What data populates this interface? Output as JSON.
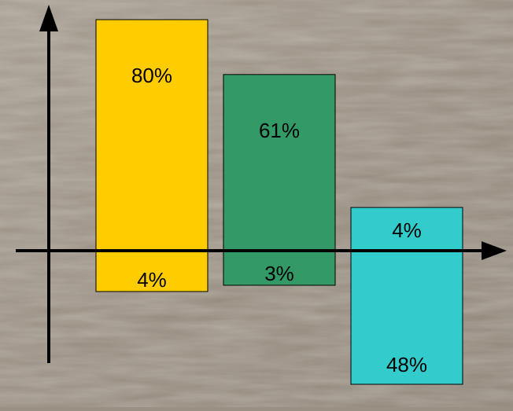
{
  "chart_data": {
    "type": "bar",
    "categories": [
      "",
      "",
      ""
    ],
    "series": [
      {
        "values": [
          80,
          61,
          4
        ]
      },
      {
        "values": [
          -4,
          -3,
          -48
        ]
      }
    ],
    "labels": {
      "upper": [
        "80%",
        "61%",
        "4%"
      ],
      "lower": [
        "4%",
        "3%",
        "48%"
      ]
    },
    "colors": [
      "#ffcc00",
      "#339966",
      "#33cccc"
    ],
    "title": "",
    "xlabel": "",
    "ylabel": "",
    "grid": false,
    "legend": "none"
  }
}
